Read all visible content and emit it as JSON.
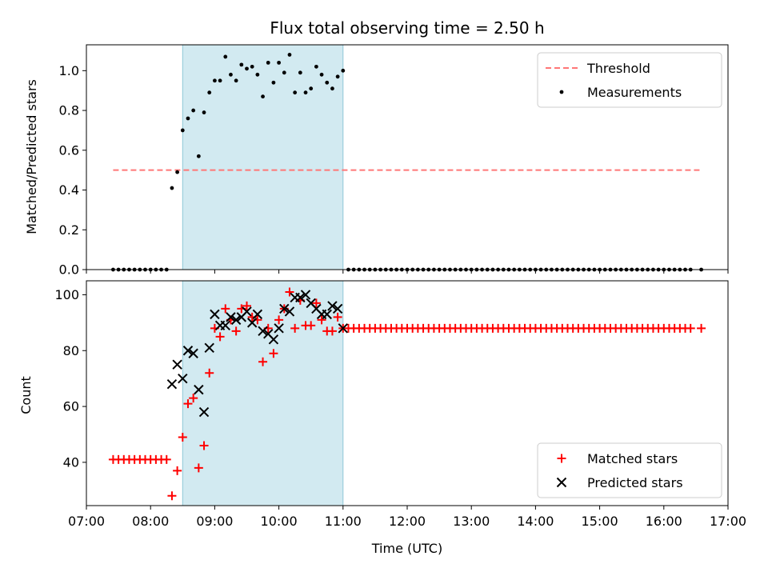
{
  "chart_data": [
    {
      "type": "scatter",
      "title": "Flux total observing time = 2.50 h",
      "xlabel": "",
      "ylabel": "Matched/Predicted stars",
      "xlim": [
        "07:00",
        "17:00"
      ],
      "ylim": [
        0,
        1.13
      ],
      "yticks": [
        "0.0",
        "0.2",
        "0.4",
        "0.6",
        "0.8",
        "1.0"
      ],
      "shaded_span": [
        "08:30",
        "11:00"
      ],
      "shaded_color": "#add8e6",
      "legend_position": "upper right",
      "threshold": {
        "name": "Threshold",
        "value": 0.5,
        "x_range": [
          "07:25",
          "16:35"
        ],
        "color": "#ff7777",
        "style": "dashed"
      },
      "series": [
        {
          "name": "Measurements",
          "marker": "dot",
          "color": "#000000",
          "points": [
            [
              "07:25",
              0
            ],
            [
              "07:30",
              0
            ],
            [
              "07:35",
              0
            ],
            [
              "07:40",
              0
            ],
            [
              "07:45",
              0
            ],
            [
              "07:50",
              0
            ],
            [
              "07:55",
              0
            ],
            [
              "08:00",
              0
            ],
            [
              "08:05",
              0
            ],
            [
              "08:10",
              0
            ],
            [
              "08:15",
              0
            ],
            [
              "08:20",
              0.41
            ],
            [
              "08:25",
              0.49
            ],
            [
              "08:30",
              0.7
            ],
            [
              "08:35",
              0.76
            ],
            [
              "08:40",
              0.8
            ],
            [
              "08:45",
              0.57
            ],
            [
              "08:50",
              0.79
            ],
            [
              "08:55",
              0.89
            ],
            [
              "09:00",
              0.95
            ],
            [
              "09:05",
              0.95
            ],
            [
              "09:10",
              1.07
            ],
            [
              "09:15",
              0.98
            ],
            [
              "09:20",
              0.95
            ],
            [
              "09:25",
              1.03
            ],
            [
              "09:30",
              1.01
            ],
            [
              "09:35",
              1.02
            ],
            [
              "09:40",
              0.98
            ],
            [
              "09:45",
              0.87
            ],
            [
              "09:50",
              1.04
            ],
            [
              "09:55",
              0.94
            ],
            [
              "10:00",
              1.04
            ],
            [
              "10:05",
              0.99
            ],
            [
              "10:10",
              1.08
            ],
            [
              "10:15",
              0.89
            ],
            [
              "10:20",
              0.99
            ],
            [
              "10:25",
              0.89
            ],
            [
              "10:30",
              0.91
            ],
            [
              "10:35",
              1.02
            ],
            [
              "10:40",
              0.98
            ],
            [
              "10:45",
              0.94
            ],
            [
              "10:50",
              0.91
            ],
            [
              "10:55",
              0.97
            ],
            [
              "11:00",
              1.0
            ],
            [
              "11:05",
              0
            ],
            [
              "11:10",
              0
            ],
            [
              "11:15",
              0
            ],
            [
              "11:20",
              0
            ],
            [
              "11:25",
              0
            ],
            [
              "11:30",
              0
            ],
            [
              "11:35",
              0
            ],
            [
              "11:40",
              0
            ],
            [
              "11:45",
              0
            ],
            [
              "11:50",
              0
            ],
            [
              "11:55",
              0
            ],
            [
              "12:00",
              0
            ],
            [
              "12:05",
              0
            ],
            [
              "12:10",
              0
            ],
            [
              "12:15",
              0
            ],
            [
              "12:20",
              0
            ],
            [
              "12:25",
              0
            ],
            [
              "12:30",
              0
            ],
            [
              "12:35",
              0
            ],
            [
              "12:40",
              0
            ],
            [
              "12:45",
              0
            ],
            [
              "12:50",
              0
            ],
            [
              "12:55",
              0
            ],
            [
              "13:00",
              0
            ],
            [
              "13:05",
              0
            ],
            [
              "13:10",
              0
            ],
            [
              "13:15",
              0
            ],
            [
              "13:20",
              0
            ],
            [
              "13:25",
              0
            ],
            [
              "13:30",
              0
            ],
            [
              "13:35",
              0
            ],
            [
              "13:40",
              0
            ],
            [
              "13:45",
              0
            ],
            [
              "13:50",
              0
            ],
            [
              "13:55",
              0
            ],
            [
              "14:00",
              0
            ],
            [
              "14:05",
              0
            ],
            [
              "14:10",
              0
            ],
            [
              "14:15",
              0
            ],
            [
              "14:20",
              0
            ],
            [
              "14:25",
              0
            ],
            [
              "14:30",
              0
            ],
            [
              "14:35",
              0
            ],
            [
              "14:40",
              0
            ],
            [
              "14:45",
              0
            ],
            [
              "14:50",
              0
            ],
            [
              "14:55",
              0
            ],
            [
              "15:00",
              0
            ],
            [
              "15:05",
              0
            ],
            [
              "15:10",
              0
            ],
            [
              "15:15",
              0
            ],
            [
              "15:20",
              0
            ],
            [
              "15:25",
              0
            ],
            [
              "15:30",
              0
            ],
            [
              "15:35",
              0
            ],
            [
              "15:40",
              0
            ],
            [
              "15:45",
              0
            ],
            [
              "15:50",
              0
            ],
            [
              "15:55",
              0
            ],
            [
              "16:00",
              0
            ],
            [
              "16:05",
              0
            ],
            [
              "16:10",
              0
            ],
            [
              "16:15",
              0
            ],
            [
              "16:20",
              0
            ],
            [
              "16:25",
              0
            ],
            [
              "16:35",
              0
            ]
          ]
        }
      ]
    },
    {
      "type": "scatter",
      "title": "",
      "xlabel": "Time (UTC)",
      "ylabel": "Count",
      "xlim": [
        "07:00",
        "17:00"
      ],
      "xticks": [
        "07:00",
        "08:00",
        "09:00",
        "10:00",
        "11:00",
        "12:00",
        "13:00",
        "14:00",
        "15:00",
        "16:00",
        "17:00"
      ],
      "ylim": [
        24.5,
        105
      ],
      "yticks": [
        "40",
        "60",
        "80",
        "100"
      ],
      "shaded_span": [
        "08:30",
        "11:00"
      ],
      "shaded_color": "#add8e6",
      "legend_position": "lower right",
      "series": [
        {
          "name": "Matched stars",
          "marker": "plus",
          "color": "#ff0000",
          "points": [
            [
              "07:25",
              41
            ],
            [
              "07:30",
              41
            ],
            [
              "07:35",
              41
            ],
            [
              "07:40",
              41
            ],
            [
              "07:45",
              41
            ],
            [
              "07:50",
              41
            ],
            [
              "07:55",
              41
            ],
            [
              "08:00",
              41
            ],
            [
              "08:05",
              41
            ],
            [
              "08:10",
              41
            ],
            [
              "08:15",
              41
            ],
            [
              "08:20",
              28
            ],
            [
              "08:25",
              37
            ],
            [
              "08:30",
              49
            ],
            [
              "08:35",
              61
            ],
            [
              "08:40",
              63
            ],
            [
              "08:45",
              38
            ],
            [
              "08:50",
              46
            ],
            [
              "08:55",
              72
            ],
            [
              "09:00",
              88
            ],
            [
              "09:05",
              85
            ],
            [
              "09:10",
              95
            ],
            [
              "09:15",
              91
            ],
            [
              "09:20",
              87
            ],
            [
              "09:25",
              95
            ],
            [
              "09:30",
              96
            ],
            [
              "09:35",
              92
            ],
            [
              "09:40",
              91
            ],
            [
              "09:45",
              76
            ],
            [
              "09:50",
              88
            ],
            [
              "09:55",
              79
            ],
            [
              "10:00",
              91
            ],
            [
              "10:05",
              95
            ],
            [
              "10:10",
              101
            ],
            [
              "10:15",
              88
            ],
            [
              "10:20",
              98
            ],
            [
              "10:25",
              89
            ],
            [
              "10:30",
              89
            ],
            [
              "10:35",
              97
            ],
            [
              "10:40",
              91
            ],
            [
              "10:45",
              87
            ],
            [
              "10:50",
              87
            ],
            [
              "10:55",
              92
            ],
            [
              "11:00",
              88
            ],
            [
              "11:05",
              88
            ],
            [
              "11:10",
              88
            ],
            [
              "11:15",
              88
            ],
            [
              "11:20",
              88
            ],
            [
              "11:25",
              88
            ],
            [
              "11:30",
              88
            ],
            [
              "11:35",
              88
            ],
            [
              "11:40",
              88
            ],
            [
              "11:45",
              88
            ],
            [
              "11:50",
              88
            ],
            [
              "11:55",
              88
            ],
            [
              "12:00",
              88
            ],
            [
              "12:05",
              88
            ],
            [
              "12:10",
              88
            ],
            [
              "12:15",
              88
            ],
            [
              "12:20",
              88
            ],
            [
              "12:25",
              88
            ],
            [
              "12:30",
              88
            ],
            [
              "12:35",
              88
            ],
            [
              "12:40",
              88
            ],
            [
              "12:45",
              88
            ],
            [
              "12:50",
              88
            ],
            [
              "12:55",
              88
            ],
            [
              "13:00",
              88
            ],
            [
              "13:05",
              88
            ],
            [
              "13:10",
              88
            ],
            [
              "13:15",
              88
            ],
            [
              "13:20",
              88
            ],
            [
              "13:25",
              88
            ],
            [
              "13:30",
              88
            ],
            [
              "13:35",
              88
            ],
            [
              "13:40",
              88
            ],
            [
              "13:45",
              88
            ],
            [
              "13:50",
              88
            ],
            [
              "13:55",
              88
            ],
            [
              "14:00",
              88
            ],
            [
              "14:05",
              88
            ],
            [
              "14:10",
              88
            ],
            [
              "14:15",
              88
            ],
            [
              "14:20",
              88
            ],
            [
              "14:25",
              88
            ],
            [
              "14:30",
              88
            ],
            [
              "14:35",
              88
            ],
            [
              "14:40",
              88
            ],
            [
              "14:45",
              88
            ],
            [
              "14:50",
              88
            ],
            [
              "14:55",
              88
            ],
            [
              "15:00",
              88
            ],
            [
              "15:05",
              88
            ],
            [
              "15:10",
              88
            ],
            [
              "15:15",
              88
            ],
            [
              "15:20",
              88
            ],
            [
              "15:25",
              88
            ],
            [
              "15:30",
              88
            ],
            [
              "15:35",
              88
            ],
            [
              "15:40",
              88
            ],
            [
              "15:45",
              88
            ],
            [
              "15:50",
              88
            ],
            [
              "15:55",
              88
            ],
            [
              "16:00",
              88
            ],
            [
              "16:05",
              88
            ],
            [
              "16:10",
              88
            ],
            [
              "16:15",
              88
            ],
            [
              "16:20",
              88
            ],
            [
              "16:25",
              88
            ],
            [
              "16:35",
              88
            ]
          ]
        },
        {
          "name": "Predicted stars",
          "marker": "x",
          "color": "#000000",
          "points": [
            [
              "08:20",
              68
            ],
            [
              "08:25",
              75
            ],
            [
              "08:30",
              70
            ],
            [
              "08:35",
              80
            ],
            [
              "08:40",
              79
            ],
            [
              "08:45",
              66
            ],
            [
              "08:50",
              58
            ],
            [
              "08:55",
              81
            ],
            [
              "09:00",
              93
            ],
            [
              "09:05",
              89
            ],
            [
              "09:10",
              89
            ],
            [
              "09:15",
              92
            ],
            [
              "09:20",
              91
            ],
            [
              "09:25",
              92
            ],
            [
              "09:30",
              94
            ],
            [
              "09:35",
              90
            ],
            [
              "09:40",
              93
            ],
            [
              "09:45",
              87
            ],
            [
              "09:50",
              86
            ],
            [
              "09:55",
              84
            ],
            [
              "10:00",
              88
            ],
            [
              "10:05",
              95
            ],
            [
              "10:10",
              94
            ],
            [
              "10:15",
              99
            ],
            [
              "10:20",
              99
            ],
            [
              "10:25",
              100
            ],
            [
              "10:30",
              97
            ],
            [
              "10:35",
              95
            ],
            [
              "10:40",
              93
            ],
            [
              "10:45",
              93
            ],
            [
              "10:50",
              96
            ],
            [
              "10:55",
              95
            ],
            [
              "11:00",
              88
            ]
          ]
        }
      ]
    }
  ]
}
